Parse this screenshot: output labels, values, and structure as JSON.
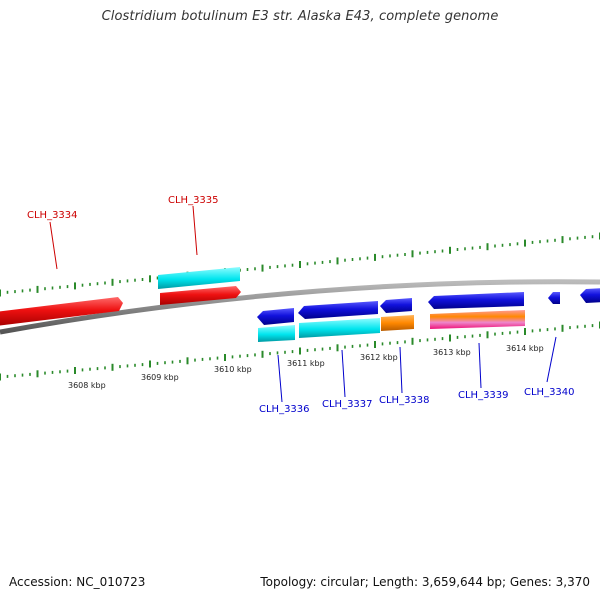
{
  "title": "Clostridium botulinum E3 str. Alaska E43, complete genome",
  "footer": {
    "accession": "Accession: NC_010723",
    "summary": "Topology: circular; Length: 3,659,644 bp; Genes: 3,370"
  },
  "colors": {
    "gene_forward": "#ee1111",
    "gene_reverse": "#1111dd",
    "cds": "#00e5ee",
    "misc": "#ff8800",
    "label_forward": "#cc0000",
    "label_reverse": "#0000cc",
    "tick": "#2a8a2a",
    "backbone": "#888888"
  },
  "scale_labels": [
    "3608 kbp",
    "3609 kbp",
    "3610 kbp",
    "3611 kbp",
    "3612 kbp",
    "3613 kbp",
    "3614 kbp"
  ],
  "genes": [
    {
      "id": "CLH_3334",
      "strand": "+"
    },
    {
      "id": "CLH_3335",
      "strand": "+"
    },
    {
      "id": "CLH_3336",
      "strand": "-"
    },
    {
      "id": "CLH_3337",
      "strand": "-"
    },
    {
      "id": "CLH_3338",
      "strand": "-"
    },
    {
      "id": "CLH_3339",
      "strand": "-"
    },
    {
      "id": "CLH_3340",
      "strand": "-"
    }
  ]
}
